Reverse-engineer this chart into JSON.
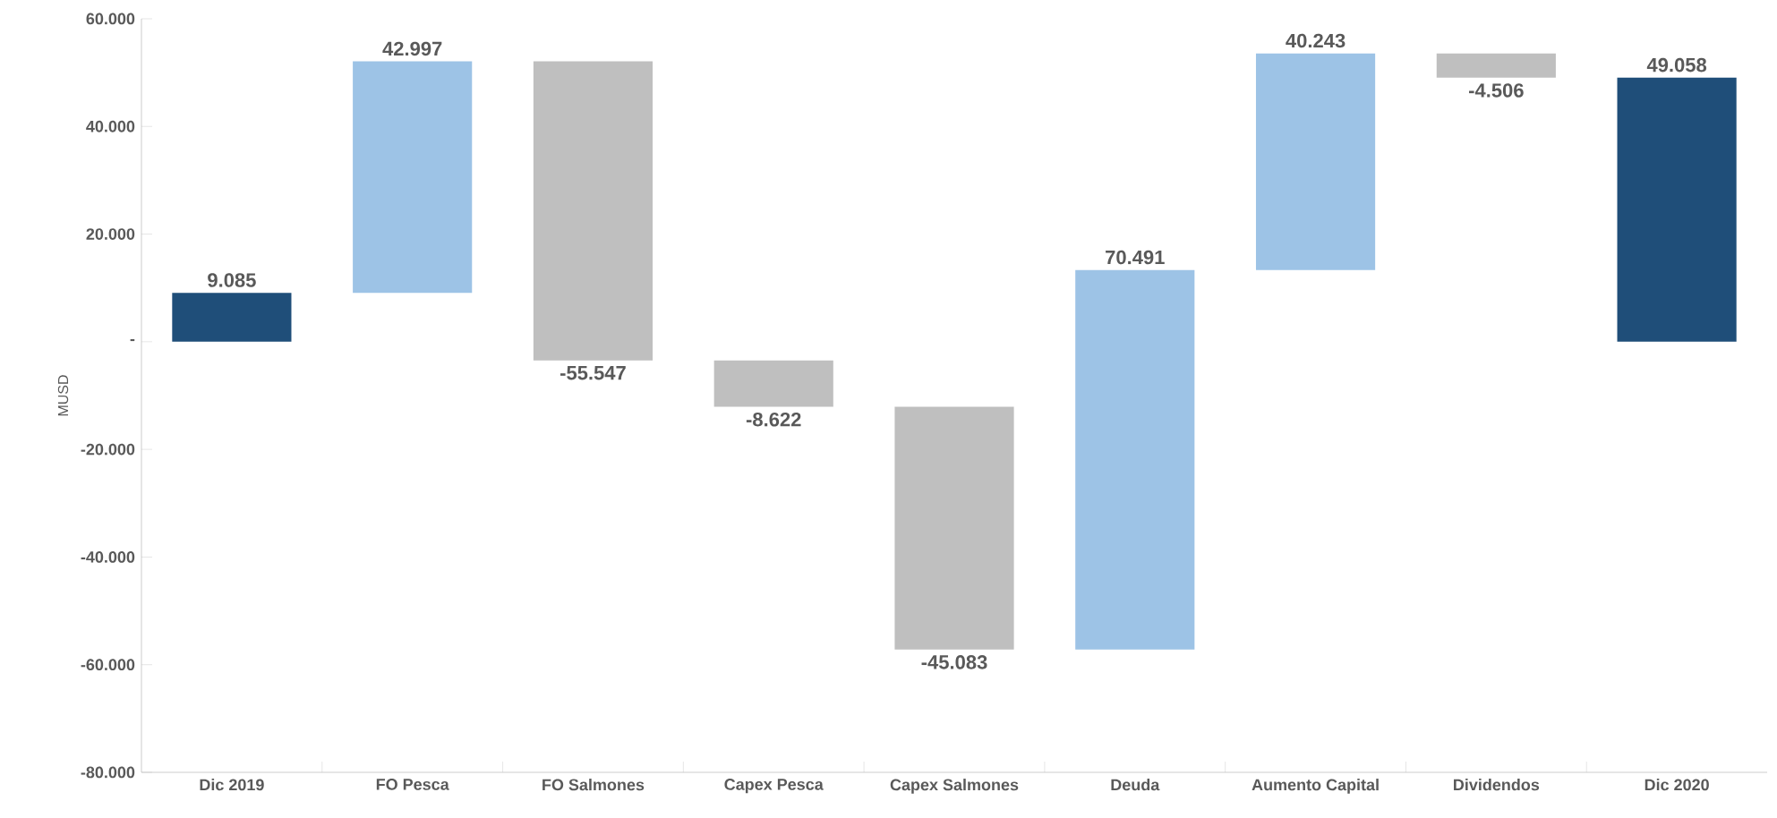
{
  "chart_data": {
    "type": "bar",
    "categories": [
      "Dic 2019",
      "FO Pesca",
      "FO Salmones",
      "Capex Pesca",
      "Capex Salmones",
      "Deuda",
      "Aumento Capital",
      "Dividendos",
      "Dic 2020"
    ],
    "values": [
      9085,
      42997,
      -55547,
      -8622,
      -45083,
      70491,
      40243,
      -4506,
      49058
    ],
    "base": [
      0,
      9085,
      52082,
      -3465,
      -12087,
      -57170,
      13321,
      53564,
      0
    ],
    "colors": [
      "#1f4e79",
      "#9dc3e6",
      "#bfbfbf",
      "#bfbfbf",
      "#bfbfbf",
      "#9dc3e6",
      "#9dc3e6",
      "#bfbfbf",
      "#1f4e79"
    ],
    "value_labels": [
      "9.085",
      "42.997",
      "-55.547",
      "-8.622",
      "-45.083",
      "70.491",
      "40.243",
      "-4.506",
      "49.058"
    ],
    "ylabel": "MUSD",
    "ylim": [
      -80000,
      60000
    ],
    "yticks": [
      {
        "value": -80000,
        "label": "-80.000"
      },
      {
        "value": -60000,
        "label": "-60.000"
      },
      {
        "value": -40000,
        "label": "-40.000"
      },
      {
        "value": -20000,
        "label": "-20.000"
      },
      {
        "value": 0,
        "label": "-"
      },
      {
        "value": 20000,
        "label": "20.000"
      },
      {
        "value": 40000,
        "label": "40.000"
      },
      {
        "value": 60000,
        "label": "60.000"
      }
    ]
  }
}
